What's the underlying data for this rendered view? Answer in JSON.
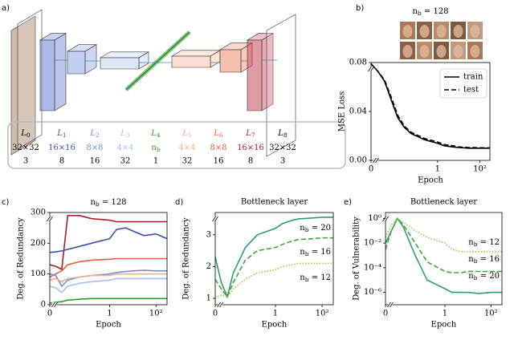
{
  "panel_labels": [
    "a)",
    "b)",
    "c)",
    "d)",
    "e)"
  ],
  "layer_table": {
    "layers": [
      {
        "symbol": "L",
        "index": "0",
        "size": "32×32",
        "channels": 3,
        "color": "#000000"
      },
      {
        "symbol": "L",
        "index": "1",
        "size": "16×16",
        "channels": 8,
        "color": "#3a4fb5"
      },
      {
        "symbol": "L",
        "index": "2",
        "size": "8×8",
        "channels": 16,
        "color": "#6f8fe0"
      },
      {
        "symbol": "L",
        "index": "3",
        "size": "4×4",
        "channels": 32,
        "color": "#a8bdf0"
      },
      {
        "symbol": "L",
        "index": "4",
        "size": "n",
        "size_sub": "b",
        "channels": 1,
        "color": "#2ca02c"
      },
      {
        "symbol": "L",
        "index": "5",
        "size": "4×4",
        "channels": 32,
        "color": "#f4ad8c"
      },
      {
        "symbol": "L",
        "index": "6",
        "size": "8×8",
        "channels": 16,
        "color": "#e8603c"
      },
      {
        "symbol": "L",
        "index": "7",
        "size": "16×16",
        "channels": 8,
        "color": "#b5172b"
      },
      {
        "symbol": "L",
        "index": "8",
        "size": "32×32",
        "channels": 3,
        "color": "#000000"
      }
    ]
  },
  "chart_data": [
    {
      "type": "line",
      "title": [
        "n",
        "b",
        " = 128"
      ],
      "xlabel": "Epoch",
      "ylabel": "MSE Loss",
      "xscale": "symlog",
      "x": [
        0,
        0.1,
        0.2,
        0.3,
        0.4,
        0.5,
        0.6,
        0.8,
        1,
        2,
        5,
        10,
        30,
        100,
        300
      ],
      "xlim": [
        0,
        300
      ],
      "xticks": [
        0,
        1,
        {
          "value": 100,
          "label": "10²"
        }
      ],
      "ylim": [
        0,
        0.08
      ],
      "yticks": [
        {
          "value": 0,
          "label": "0.00"
        },
        {
          "value": 0.04,
          "label": "0.04"
        },
        {
          "value": 0.08,
          "label": "0.08"
        }
      ],
      "legend": "upper right",
      "series": [
        {
          "name": "train",
          "color": "#000000",
          "dash": "solid",
          "values": [
            0.079,
            0.073,
            0.065,
            0.05,
            0.035,
            0.027,
            0.022,
            0.017,
            0.014,
            0.012,
            0.011,
            0.0105,
            0.01,
            0.01,
            0.01
          ]
        },
        {
          "name": "test",
          "color": "#000000",
          "dash": "dashed",
          "values": [
            0.079,
            0.073,
            0.066,
            0.052,
            0.037,
            0.028,
            0.023,
            0.018,
            0.015,
            0.013,
            0.012,
            0.011,
            0.0105,
            0.0103,
            0.0102
          ]
        }
      ]
    },
    {
      "type": "line",
      "title": [
        "n",
        "b",
        " = 128"
      ],
      "xlabel": "Epoch",
      "ylabel": "Deg. of Redundancy",
      "xscale": "symlog",
      "x": [
        0,
        0.1,
        0.2,
        0.3,
        0.5,
        0.7,
        1,
        2,
        5,
        10,
        30,
        100,
        300
      ],
      "xlim": [
        0,
        300
      ],
      "xticks": [
        0,
        1,
        {
          "value": 100,
          "label": "10²"
        }
      ],
      "ylim": [
        0,
        300
      ],
      "yticks": [
        0,
        100,
        200,
        300
      ],
      "series": [
        {
          "color": "#b5172b",
          "dash": "solid",
          "values": [
            130,
            125,
            115,
            290,
            290,
            280,
            275,
            270,
            270,
            270,
            270,
            270,
            270
          ]
        },
        {
          "color": "#3a4fb5",
          "dash": "solid",
          "values": [
            170,
            172,
            175,
            180,
            190,
            200,
            215,
            245,
            250,
            240,
            225,
            230,
            215
          ]
        },
        {
          "color": "#e8603c",
          "dash": "solid",
          "values": [
            90,
            100,
            110,
            130,
            140,
            145,
            148,
            150,
            150,
            150,
            150,
            150,
            150
          ]
        },
        {
          "color": "#6f8fe0",
          "dash": "solid",
          "values": [
            100,
            95,
            60,
            80,
            90,
            95,
            100,
            105,
            108,
            110,
            112,
            110,
            110
          ]
        },
        {
          "color": "#f4ad8c",
          "dash": "solid",
          "values": [
            80,
            85,
            75,
            85,
            90,
            95,
            95,
            100,
            100,
            100,
            100,
            100,
            100
          ]
        },
        {
          "color": "#a8bdf0",
          "dash": "solid",
          "values": [
            60,
            55,
            40,
            60,
            70,
            75,
            80,
            85,
            85,
            85,
            85,
            85,
            85
          ]
        },
        {
          "color": "#2ca02c",
          "dash": "solid",
          "values": [
            5,
            8,
            10,
            15,
            18,
            20,
            20,
            20,
            20,
            20,
            20,
            20,
            20
          ]
        }
      ]
    },
    {
      "type": "line",
      "title": "Bottleneck layer",
      "xlabel": "Epoch",
      "ylabel": "Deg. of Redundancy",
      "xscale": "symlog",
      "x": [
        0,
        0.1,
        0.2,
        0.3,
        0.5,
        0.7,
        1,
        2,
        5,
        10,
        30,
        100,
        300
      ],
      "xlim": [
        0,
        300
      ],
      "xticks": [
        0,
        1,
        {
          "value": 100,
          "label": "10²"
        }
      ],
      "ylim": [
        0.8,
        3.7
      ],
      "yticks": [
        1,
        2,
        3
      ],
      "series": [
        {
          "name": [
            "n",
            "b",
            " = 20"
          ],
          "color": "#2e9e6a",
          "dash": "solid",
          "values": [
            2.3,
            1.5,
            1.05,
            1.8,
            2.6,
            3.0,
            3.2,
            3.35,
            3.45,
            3.5,
            3.52,
            3.55,
            3.55
          ]
        },
        {
          "name": [
            "n",
            "b",
            " = 16"
          ],
          "color": "#3aaa35",
          "dash": "dashed",
          "values": [
            1.6,
            1.3,
            1.05,
            1.5,
            2.2,
            2.5,
            2.6,
            2.7,
            2.8,
            2.85,
            2.87,
            2.9,
            2.9
          ]
        },
        {
          "name": [
            "n",
            "b",
            " = 12"
          ],
          "color": "#a8c050",
          "dash": "dotted",
          "values": [
            1.0,
            1.1,
            1.05,
            1.3,
            1.6,
            1.8,
            1.9,
            2.0,
            2.05,
            2.1,
            2.1,
            2.1,
            2.1
          ]
        }
      ]
    },
    {
      "type": "line",
      "title": "Bottleneck layer",
      "xlabel": "Epoch",
      "ylabel": "Deg. of Vulnerability",
      "xscale": "symlog",
      "ylog": true,
      "x": [
        0,
        0.1,
        0.2,
        0.3,
        0.5,
        0.7,
        1,
        2,
        5,
        10,
        30,
        100,
        300
      ],
      "xlim": [
        0,
        300
      ],
      "xticks": [
        0,
        1,
        {
          "value": 100,
          "label": "10²"
        }
      ],
      "ylim": [
        1e-07,
        3
      ],
      "yticks": [
        {
          "value": 1e-06,
          "label": "10⁻⁶"
        },
        {
          "value": 0.0001,
          "label": "10⁻⁴"
        },
        {
          "value": 0.01,
          "label": "10⁻²"
        },
        {
          "value": 1,
          "label": "10⁰"
        }
      ],
      "series": [
        {
          "name": [
            "n",
            "b",
            " = 20"
          ],
          "color": "#2e9e6a",
          "dash": "solid",
          "values": [
            0.01,
            0.1,
            1,
            0.2,
            0.001,
            1e-05,
            2e-06,
            1e-06,
            1e-06,
            1e-06,
            8e-07,
            1e-06,
            1e-06
          ]
        },
        {
          "name": [
            "n",
            "b",
            " = 16"
          ],
          "color": "#3aaa35",
          "dash": "dashed",
          "values": [
            0.003,
            0.1,
            1,
            0.3,
            0.01,
            0.0003,
            5e-05,
            4e-05,
            4e-05,
            5e-05,
            5e-05,
            5e-05,
            5e-05
          ]
        },
        {
          "name": [
            "n",
            "b",
            " = 12"
          ],
          "color": "#a8c050",
          "dash": "dotted",
          "values": [
            0.03,
            0.3,
            1,
            0.5,
            0.1,
            0.03,
            0.01,
            0.003,
            0.002,
            0.002,
            0.002,
            0.002,
            0.002
          ]
        }
      ]
    }
  ]
}
